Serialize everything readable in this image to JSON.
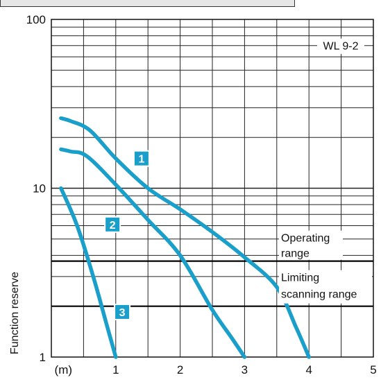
{
  "chart_data": {
    "type": "line",
    "title": "",
    "xlabel": "(m)",
    "ylabel": "Function reserve",
    "xlim": [
      0,
      5
    ],
    "ylim": [
      1,
      100
    ],
    "y_scale": "log",
    "grid": true,
    "x_ticks": [
      "1",
      "2",
      "3",
      "4",
      "5"
    ],
    "x_unit_label": "(m)",
    "y_ticks": [
      {
        "value": 1,
        "label": "1"
      },
      {
        "value": 10,
        "label": "10"
      },
      {
        "value": 100,
        "label": "100"
      }
    ],
    "model_label": "WL 9-2",
    "curve_color": "#1a9fcb",
    "badge_color": "#1a9fcb",
    "reference_lines": [
      {
        "value": 3.7,
        "label_lines": [
          "Operating",
          "range"
        ]
      },
      {
        "value": 2.0,
        "label_lines": [
          "Limiting",
          "scanning range"
        ]
      }
    ],
    "series": [
      {
        "name": "1",
        "x": [
          0.15,
          0.3,
          0.6,
          1.0,
          1.5,
          2.0,
          2.5,
          3.0,
          3.5,
          3.8,
          4.0
        ],
        "y": [
          26,
          25,
          22,
          15,
          10,
          7.5,
          5.5,
          3.9,
          2.6,
          1.5,
          1.0
        ]
      },
      {
        "name": "2",
        "x": [
          0.15,
          0.3,
          0.55,
          1.0,
          1.5,
          2.0,
          2.5,
          2.8,
          3.0
        ],
        "y": [
          17,
          16.5,
          15.5,
          10.5,
          6.5,
          4.0,
          1.9,
          1.3,
          1.0
        ]
      },
      {
        "name": "3",
        "x": [
          0.15,
          0.4,
          0.65,
          0.85,
          1.0
        ],
        "y": [
          10,
          6.0,
          3.0,
          1.6,
          1.0
        ]
      }
    ],
    "badges": [
      {
        "label": "1",
        "series": "1",
        "x": 1.4,
        "y": 15.0
      },
      {
        "label": "2",
        "series": "2",
        "x": 0.95,
        "y": 6.1
      },
      {
        "label": "3",
        "series": "3",
        "x": 1.1,
        "y": 1.85
      }
    ]
  }
}
